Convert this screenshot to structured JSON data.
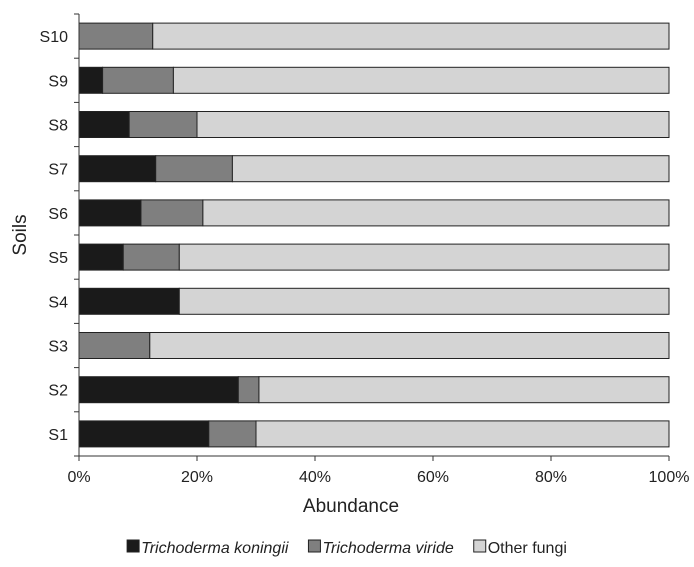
{
  "chart_data": {
    "type": "bar",
    "orientation": "horizontal",
    "stacked": true,
    "title": "",
    "xlabel": "Abundance",
    "ylabel": "Soils",
    "xlim": [
      0,
      100
    ],
    "x_ticks": [
      "0%",
      "20%",
      "40%",
      "60%",
      "80%",
      "100%"
    ],
    "categories": [
      "S1",
      "S2",
      "S3",
      "S4",
      "S5",
      "S6",
      "S7",
      "S8",
      "S9",
      "S10"
    ],
    "series": [
      {
        "name": "Trichoderma koningii",
        "italic": true,
        "color": "#1a1a1a",
        "values": [
          22,
          27,
          0,
          17,
          7.5,
          10.5,
          13,
          8.5,
          4,
          0
        ]
      },
      {
        "name": "Trichoderma viride",
        "italic": true,
        "color": "#7f7f7f",
        "values": [
          8,
          3.5,
          12,
          0,
          9.5,
          10.5,
          13,
          11.5,
          12,
          12.5
        ]
      },
      {
        "name": "Other fungi",
        "italic": false,
        "color": "#d4d4d4",
        "values": [
          70,
          69.5,
          88,
          83,
          83,
          79,
          74,
          80,
          84,
          87.5
        ]
      }
    ],
    "grid": false,
    "legend_position": "bottom"
  }
}
